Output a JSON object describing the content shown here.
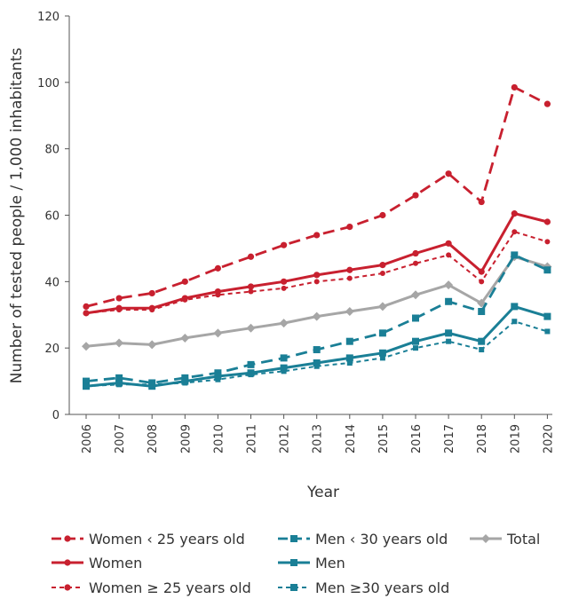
{
  "chart_data": {
    "type": "line",
    "xlabel": "Year",
    "ylabel": "Number of tested people / 1,000 inhabitants",
    "ylim": [
      0,
      120
    ],
    "yticks": [
      0,
      20,
      40,
      60,
      80,
      100,
      120
    ],
    "categories": [
      "2006",
      "2007",
      "2008",
      "2009",
      "2010",
      "2011",
      "2012",
      "2013",
      "2014",
      "2015",
      "2016",
      "2017",
      "2018",
      "2019",
      "2020"
    ],
    "grid": false,
    "legend_position": "bottom",
    "series": [
      {
        "name": "Women ‹ 25 years old",
        "color": "#c8202f",
        "style": "long-dash",
        "values": [
          32.5,
          35,
          36.5,
          40,
          44,
          47.5,
          51,
          54,
          56.5,
          60,
          66,
          72.5,
          64,
          98.5,
          93.5
        ]
      },
      {
        "name": "Women",
        "color": "#c8202f",
        "style": "solid",
        "values": [
          30.5,
          32,
          32,
          35,
          37,
          38.5,
          40,
          42,
          43.5,
          45,
          48.5,
          51.5,
          43,
          60.5,
          58
        ]
      },
      {
        "name": "Women ≥ 25 years old",
        "color": "#c8202f",
        "style": "short-dash",
        "values": [
          30.5,
          31.5,
          31.5,
          34.5,
          36,
          37,
          38,
          40,
          41,
          42.5,
          45.5,
          48,
          40,
          55,
          52
        ]
      },
      {
        "name": "Men ‹ 30 years old",
        "color": "#1a7f96",
        "style": "long-dash",
        "values": [
          10,
          11,
          9.5,
          11,
          12.5,
          15,
          17,
          19.5,
          22,
          24.5,
          29,
          34,
          31,
          48,
          43.5
        ]
      },
      {
        "name": "Men",
        "color": "#1a7f96",
        "style": "solid",
        "values": [
          8.5,
          9.5,
          8.5,
          10,
          11.5,
          12.5,
          14,
          15.5,
          17,
          18.5,
          22,
          24.5,
          22,
          32.5,
          29.5
        ]
      },
      {
        "name": "Men ≥30 years old",
        "color": "#1a7f96",
        "style": "short-dash",
        "values": [
          8.5,
          9,
          9,
          9.5,
          10.5,
          12,
          13,
          14.5,
          15.5,
          17,
          20,
          22,
          19.5,
          28,
          25
        ]
      },
      {
        "name": "Total",
        "color": "#a6a6a6",
        "style": "solid",
        "values": [
          20.5,
          21.5,
          21,
          23,
          24.5,
          26,
          27.5,
          29.5,
          31,
          32.5,
          36,
          39,
          33.5,
          47.5,
          44.5
        ]
      }
    ]
  }
}
